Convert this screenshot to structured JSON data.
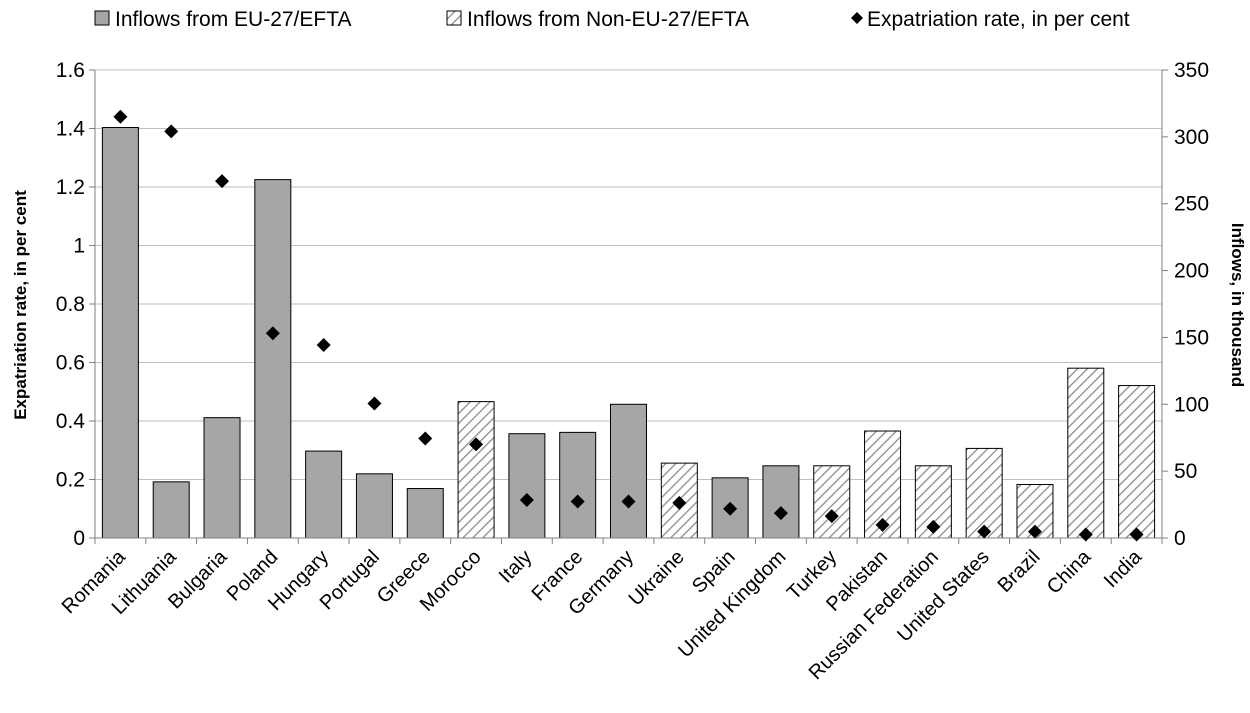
{
  "chart_data": {
    "type": "bar",
    "categories": [
      "Romania",
      "Lithuania",
      "Bulgaria",
      "Poland",
      "Hungary",
      "Portugal",
      "Greece",
      "Morocco",
      "Italy",
      "France",
      "Germany",
      "Ukraine",
      "Spain",
      "United Kingdom",
      "Turkey",
      "Pakistan",
      "Russian Federation",
      "United States",
      "Brazil",
      "China",
      "India"
    ],
    "series": [
      {
        "name": "Inflows from EU-27/EFTA",
        "axis": "right",
        "mark": "bar",
        "pattern": "solid",
        "color": "#a6a6a6",
        "values": [
          307,
          42,
          90,
          268,
          65,
          48,
          37,
          null,
          78,
          79,
          100,
          null,
          45,
          54,
          null,
          null,
          null,
          null,
          null,
          null,
          null
        ]
      },
      {
        "name": "Inflows from Non-EU-27/EFTA",
        "axis": "right",
        "mark": "bar",
        "pattern": "hatched",
        "color": "#ffffff",
        "values": [
          null,
          null,
          null,
          null,
          null,
          null,
          null,
          102,
          null,
          null,
          null,
          56,
          null,
          null,
          54,
          80,
          54,
          67,
          40,
          127,
          114
        ]
      },
      {
        "name": "Expatriation rate, in per cent",
        "axis": "left",
        "mark": "diamond",
        "color": "#000000",
        "values": [
          1.44,
          1.39,
          1.22,
          0.7,
          0.66,
          0.46,
          0.34,
          0.32,
          0.13,
          0.125,
          0.125,
          0.12,
          0.1,
          0.085,
          0.075,
          0.045,
          0.038,
          0.022,
          0.022,
          0.012,
          0.012
        ]
      }
    ],
    "y_left": {
      "label": "Expatriation rate, in per cent",
      "range": [
        0,
        1.6
      ],
      "ticks": [
        "0",
        "0.2",
        "0.4",
        "0.6",
        "0.8",
        "1",
        "1.2",
        "1.4",
        "1.6"
      ]
    },
    "y_right": {
      "label": "Inflows, in thousand",
      "range": [
        0,
        350
      ],
      "ticks": [
        "0",
        "50",
        "100",
        "150",
        "200",
        "250",
        "300",
        "350"
      ]
    },
    "grid": true,
    "legend_position": "top"
  }
}
